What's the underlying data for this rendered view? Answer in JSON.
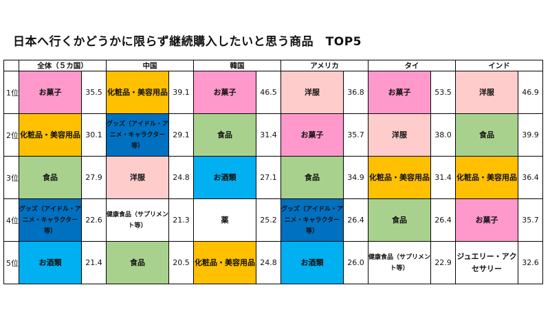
{
  "title": "日本へ行くかどうかに限らず継続購入したいと思う商品　TOP5",
  "colors": {
    "お菓子": "#ff99cc",
    "洋服": "#ffcccc",
    "化粧品・美容用品": "#ffc000",
    "グッズ（アイドル・アニメ・キャラクター等）": "#0070c0",
    "お酒類": "#00b0f0",
    "食品": "#a9d18e",
    "other": "#ffffff"
  },
  "columns": [
    "全体（５カ国）",
    "中国",
    "韓国",
    "アメリカ",
    "タイ",
    "インド"
  ],
  "rows": [
    {
      "rank": "1位",
      "cells": [
        {
          "item": "お菓子",
          "value": "35.5",
          "color": "pink"
        },
        {
          "item": "化粧品・美容用品",
          "value": "39.1",
          "color": "yellow"
        },
        {
          "item": "お菓子",
          "value": "46.5",
          "color": "pink"
        },
        {
          "item": "洋服",
          "value": "36.8",
          "color": "lpink"
        },
        {
          "item": "お菓子",
          "value": "53.5",
          "color": "pink"
        },
        {
          "item": "洋服",
          "value": "46.9",
          "color": "lpink"
        }
      ]
    },
    {
      "rank": "2位",
      "cells": [
        {
          "item": "化粧品・美容用品",
          "value": "30.1",
          "color": "yellow"
        },
        {
          "item": "グッズ（アイドル・アニメ・キャラクター等）",
          "value": "29.1",
          "color": "navy",
          "small": true
        },
        {
          "item": "食品",
          "value": "31.4",
          "color": "green"
        },
        {
          "item": "お菓子",
          "value": "35.7",
          "color": "pink"
        },
        {
          "item": "洋服",
          "value": "38.0",
          "color": "lpink"
        },
        {
          "item": "食品",
          "value": "39.9",
          "color": "green"
        }
      ]
    },
    {
      "rank": "3位",
      "cells": [
        {
          "item": "食品",
          "value": "27.9",
          "color": "green"
        },
        {
          "item": "洋服",
          "value": "24.8",
          "color": "lpink"
        },
        {
          "item": "お酒類",
          "value": "27.1",
          "color": "cyan"
        },
        {
          "item": "食品",
          "value": "34.9",
          "color": "green"
        },
        {
          "item": "化粧品・美容用品",
          "value": "31.4",
          "color": "yellow"
        },
        {
          "item": "化粧品・美容用品",
          "value": "36.4",
          "color": "yellow"
        }
      ]
    },
    {
      "rank": "4位",
      "cells": [
        {
          "item": "グッズ（アイドル・アニメ・キャラクター等）",
          "value": "22.6",
          "color": "navy",
          "small": true
        },
        {
          "item": "健康食品（サプリメント等）",
          "value": "21.3",
          "color": "white",
          "small": true
        },
        {
          "item": "薬",
          "value": "25.2",
          "color": "white"
        },
        {
          "item": "グッズ（アイドル・アニメ・キャラクター等）",
          "value": "26.4",
          "color": "navy",
          "small": true
        },
        {
          "item": "食品",
          "value": "26.4",
          "color": "green"
        },
        {
          "item": "お菓子",
          "value": "35.7",
          "color": "pink"
        }
      ]
    },
    {
      "rank": "5位",
      "cells": [
        {
          "item": "お酒類",
          "value": "21.4",
          "color": "cyan"
        },
        {
          "item": "食品",
          "value": "20.5",
          "color": "green"
        },
        {
          "item": "化粧品・美容用品",
          "value": "24.8",
          "color": "yellow"
        },
        {
          "item": "お酒類",
          "value": "26.0",
          "color": "cyan"
        },
        {
          "item": "健康食品（サプリメント等）",
          "value": "22.9",
          "color": "white",
          "small": true
        },
        {
          "item": "ジュエリー・アクセサリー",
          "value": "32.6",
          "color": "white"
        }
      ]
    }
  ]
}
